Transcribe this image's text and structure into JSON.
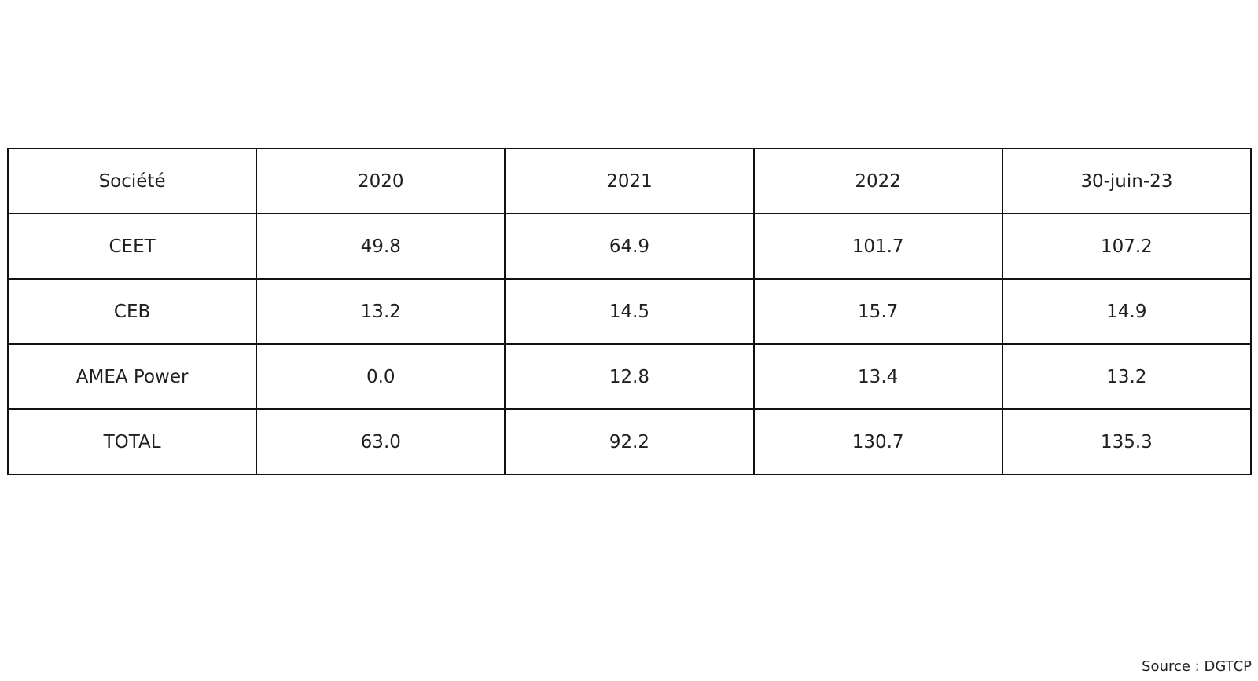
{
  "chart_data": {
    "type": "table",
    "columns": [
      "Société",
      "2020",
      "2021",
      "2022",
      "30-juin-23"
    ],
    "rows": [
      [
        "CEET",
        "49.8",
        "64.9",
        "101.7",
        "107.2"
      ],
      [
        "CEB",
        "13.2",
        "14.5",
        "15.7",
        "14.9"
      ],
      [
        "AMEA Power",
        "0.0",
        "12.8",
        "13.4",
        "13.2"
      ],
      [
        "TOTAL",
        "63.0",
        "92.2",
        "130.7",
        "135.3"
      ]
    ],
    "source": "Source : DGTCP"
  }
}
